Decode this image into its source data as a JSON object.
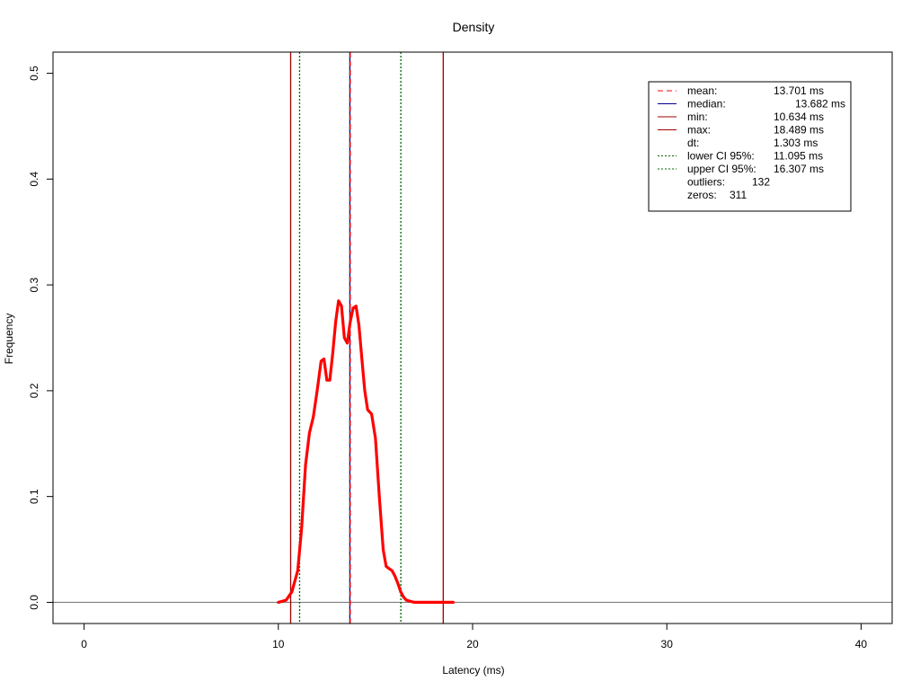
{
  "chart_data": {
    "type": "line",
    "title": "Density",
    "xlabel": "Latency (ms)",
    "ylabel": "Frequency",
    "xlim": [
      -1.6,
      41.6
    ],
    "ylim": [
      -0.02,
      0.52
    ],
    "x_ticks": [
      0,
      10,
      20,
      30,
      40
    ],
    "y_ticks": [
      0.0,
      0.1,
      0.2,
      0.3,
      0.4,
      0.5
    ],
    "y_tick_labels": [
      "0.0",
      "0.1",
      "0.2",
      "0.3",
      "0.4",
      "0.5"
    ],
    "grid": false,
    "legend_position": "top-right",
    "series": [
      {
        "color": "#ff0000",
        "x": [
          10.0,
          10.4,
          10.7,
          11.0,
          11.2,
          11.4,
          11.6,
          11.8,
          12.0,
          12.2,
          12.35,
          12.5,
          12.65,
          12.8,
          12.95,
          13.1,
          13.25,
          13.4,
          13.55,
          13.7,
          13.85,
          14.0,
          14.15,
          14.3,
          14.45,
          14.6,
          14.8,
          15.0,
          15.2,
          15.4,
          15.55,
          15.7,
          15.85,
          16.0,
          16.15,
          16.3,
          16.45,
          16.6,
          16.8,
          17.0,
          17.3,
          17.7,
          18.2,
          19.0
        ],
        "y": [
          0.0,
          0.002,
          0.01,
          0.03,
          0.07,
          0.13,
          0.16,
          0.175,
          0.2,
          0.228,
          0.23,
          0.21,
          0.21,
          0.235,
          0.265,
          0.285,
          0.28,
          0.25,
          0.245,
          0.265,
          0.278,
          0.28,
          0.262,
          0.23,
          0.2,
          0.182,
          0.178,
          0.155,
          0.1,
          0.05,
          0.034,
          0.032,
          0.03,
          0.025,
          0.018,
          0.01,
          0.005,
          0.002,
          0.001,
          0.0,
          0.0,
          0.0,
          0.0,
          0.0
        ]
      }
    ],
    "vertical_lines": [
      {
        "value": 10.634,
        "color": "#a00000",
        "style": "solid"
      },
      {
        "value": 18.489,
        "color": "#a00000",
        "style": "solid"
      },
      {
        "value": 11.095,
        "color": "#006400",
        "style": "dotted"
      },
      {
        "value": 16.307,
        "color": "#006400",
        "style": "dotted"
      },
      {
        "value": 13.682,
        "color": "#00008b",
        "style": "solid"
      },
      {
        "value": 13.701,
        "color": "#ff0000",
        "style": "dashed"
      }
    ],
    "legend": [
      {
        "label": "mean:",
        "value": "13.701 ms",
        "color": "#ff0000",
        "style": "dashed"
      },
      {
        "label": "median:",
        "value": "13.682 ms",
        "color": "#00008b",
        "style": "solid"
      },
      {
        "label": "min:",
        "value": "10.634 ms",
        "color": "#a00000",
        "style": "solid"
      },
      {
        "label": "max:",
        "value": "18.489 ms",
        "color": "#a00000",
        "style": "solid"
      },
      {
        "label": "dt:",
        "value": "1.303 ms",
        "color": "",
        "style": "none"
      },
      {
        "label": "lower CI 95%:",
        "value": "11.095 ms",
        "color": "#006400",
        "style": "dotted"
      },
      {
        "label": "upper CI 95%:",
        "value": "16.307 ms",
        "color": "#006400",
        "style": "dotted"
      },
      {
        "label": "outliers:",
        "value": "132",
        "color": "",
        "style": "none"
      },
      {
        "label": "zeros:",
        "value": "311",
        "color": "",
        "style": "none"
      }
    ]
  }
}
